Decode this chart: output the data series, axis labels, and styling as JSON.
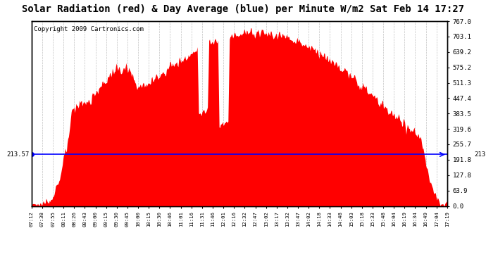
{
  "title": "Solar Radiation (red) & Day Average (blue) per Minute W/m2 Sat Feb 14 17:27",
  "copyright": "Copyright 2009 Cartronics.com",
  "y_max": 767.0,
  "y_min": 0.0,
  "day_average": 213.57,
  "day_average_label": "213.57",
  "right_yticks": [
    767.0,
    703.1,
    639.2,
    575.2,
    511.3,
    447.4,
    383.5,
    319.6,
    255.7,
    191.8,
    127.8,
    63.9,
    0.0
  ],
  "right_ytick_labels": [
    "767.0",
    "703.1",
    "639.2",
    "575.2",
    "511.3",
    "447.4",
    "383.5",
    "319.6",
    "255.7",
    "191.8",
    "127.8",
    "63.9",
    "0.0"
  ],
  "xtick_labels": [
    "07:12",
    "07:38",
    "07:55",
    "08:11",
    "08:26",
    "08:43",
    "09:00",
    "09:15",
    "09:30",
    "09:45",
    "10:00",
    "10:15",
    "10:30",
    "10:46",
    "11:01",
    "11:16",
    "11:31",
    "11:46",
    "12:01",
    "12:16",
    "12:32",
    "12:47",
    "13:02",
    "13:17",
    "13:32",
    "13:47",
    "14:02",
    "14:18",
    "14:33",
    "14:48",
    "15:03",
    "15:18",
    "15:33",
    "15:48",
    "16:04",
    "16:19",
    "16:34",
    "16:49",
    "17:04",
    "17:19"
  ],
  "background_color": "#ffffff",
  "plot_bg_color": "#ffffff",
  "grid_color": "#bbbbbb",
  "bar_color": "#ff0000",
  "line_color": "#0000ff",
  "title_fontsize": 10,
  "copyright_fontsize": 6.5,
  "figsize": [
    6.9,
    3.75
  ],
  "dpi": 100
}
